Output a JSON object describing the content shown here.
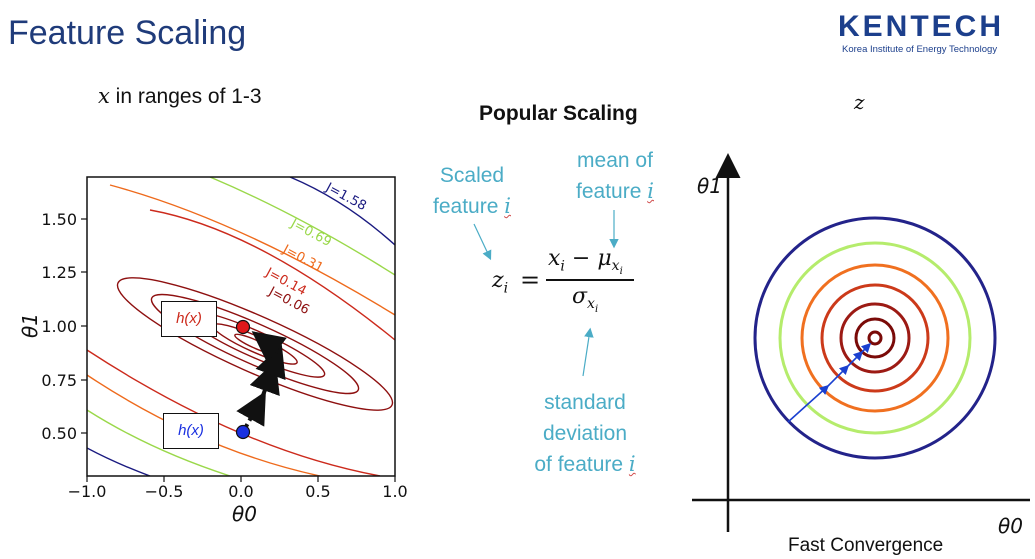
{
  "slide": {
    "title": "Feature Scaling",
    "logo_text": "KENTECH",
    "logo_subtext": "Korea Institute of Energy Technology",
    "left_caption_var": "x",
    "left_caption_rest": " in ranges of 1-3",
    "middle_title": "Popular Scaling",
    "right_var": "z",
    "bottom_caption": "Fast Convergence"
  },
  "annotations": {
    "scaled_line1": "Scaled",
    "scaled_line2": "feature",
    "mean_line1": "mean of",
    "mean_line2": "feature",
    "std_line1": "standard",
    "std_line2": "deviation",
    "std_line3": "of feature",
    "index_var": "i"
  },
  "formula": {
    "lhs": "z",
    "lhs_sub": "i",
    "equals": "=",
    "numerator": "x",
    "numerator_sub": "i",
    "minus": "−",
    "mu": "μ",
    "mu_sub": "x",
    "mu_subsub": "i",
    "denominator": "σ",
    "den_sub": "x",
    "den_subsub": "i"
  },
  "left_plot": {
    "xlabel": "θ0",
    "ylabel": "θ1",
    "x_ticks": [
      "−1.0",
      "−0.5",
      "0.0",
      "0.5",
      "1.0"
    ],
    "y_ticks": [
      "0.50",
      "0.75",
      "1.00",
      "1.25",
      "1.50"
    ],
    "contour_labels": [
      "J=1.58",
      "J=0.69",
      "J=0.31",
      "J=0.14",
      "J=0.06"
    ],
    "hx_top": "h(x)",
    "hx_bottom": "h(x)",
    "colors": {
      "navy": "#1a1a80",
      "lime": "#9ad84a",
      "orange": "#ee6a1c",
      "red": "#cc2a1c",
      "darkred": "#8e1010",
      "point_optimum": "#e0181a",
      "point_start": "#1a30e0"
    }
  },
  "right_plot": {
    "xlabel": "θ0",
    "ylabel": "θ1",
    "colors": [
      "#23238a",
      "#b5ec6c",
      "#f07020",
      "#cc3a1a",
      "#9c1a14",
      "#7a0a08"
    ]
  }
}
